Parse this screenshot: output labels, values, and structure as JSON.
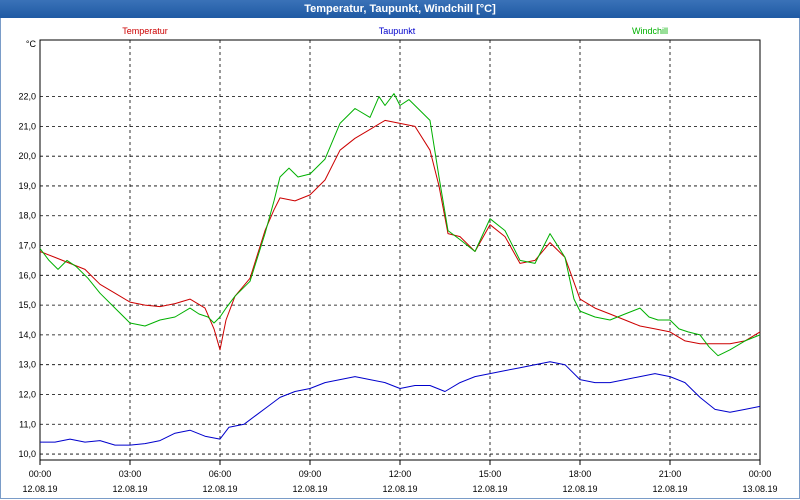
{
  "window": {
    "title": "Temperatur, Taupunkt, Windchill [°C]"
  },
  "chart_data": {
    "type": "line",
    "title": "Temperatur, Taupunkt, Windchill [°C]",
    "ylabel": "°C",
    "ylim": [
      9.8,
      23.9
    ],
    "xlim": [
      0,
      24
    ],
    "grid": true,
    "yticks": [
      10.0,
      11.0,
      12.0,
      13.0,
      14.0,
      15.0,
      16.0,
      17.0,
      18.0,
      19.0,
      20.0,
      21.0,
      22.0
    ],
    "ytick_labels": [
      "10,0",
      "11,0",
      "12,0",
      "13,0",
      "14,0",
      "15,0",
      "16,0",
      "17,0",
      "18,0",
      "19,0",
      "20,0",
      "21,0",
      "22,0"
    ],
    "xticks": [
      {
        "x": 0,
        "time": "00:00",
        "date": "12.08.19"
      },
      {
        "x": 3,
        "time": "03:00",
        "date": "12.08.19"
      },
      {
        "x": 6,
        "time": "06:00",
        "date": "12.08.19"
      },
      {
        "x": 9,
        "time": "09:00",
        "date": "12.08.19"
      },
      {
        "x": 12,
        "time": "12:00",
        "date": "12.08.19"
      },
      {
        "x": 15,
        "time": "15:00",
        "date": "12.08.19"
      },
      {
        "x": 18,
        "time": "18:00",
        "date": "12.08.19"
      },
      {
        "x": 21,
        "time": "21:00",
        "date": "12.08.19"
      },
      {
        "x": 24,
        "time": "00:00",
        "date": "13.08.19"
      }
    ],
    "series": [
      {
        "name": "Temperatur",
        "color": "#cc0000",
        "legend_pos": "left",
        "points": [
          [
            0,
            16.8
          ],
          [
            0.5,
            16.6
          ],
          [
            1,
            16.4
          ],
          [
            1.5,
            16.2
          ],
          [
            2,
            15.7
          ],
          [
            2.5,
            15.4
          ],
          [
            3,
            15.1
          ],
          [
            3.5,
            15.0
          ],
          [
            4,
            14.95
          ],
          [
            4.5,
            15.05
          ],
          [
            5,
            15.2
          ],
          [
            5.5,
            14.9
          ],
          [
            5.8,
            14.2
          ],
          [
            6,
            13.5
          ],
          [
            6.2,
            14.5
          ],
          [
            6.5,
            15.3
          ],
          [
            7,
            15.9
          ],
          [
            7.5,
            17.5
          ],
          [
            7.8,
            18.2
          ],
          [
            8,
            18.6
          ],
          [
            8.5,
            18.5
          ],
          [
            9,
            18.7
          ],
          [
            9.5,
            19.2
          ],
          [
            10,
            20.2
          ],
          [
            10.5,
            20.6
          ],
          [
            11,
            20.9
          ],
          [
            11.5,
            21.2
          ],
          [
            12,
            21.1
          ],
          [
            12.5,
            21.0
          ],
          [
            13,
            20.2
          ],
          [
            13.3,
            19.0
          ],
          [
            13.6,
            17.4
          ],
          [
            14,
            17.3
          ],
          [
            14.5,
            16.8
          ],
          [
            15,
            17.7
          ],
          [
            15.5,
            17.3
          ],
          [
            16,
            16.4
          ],
          [
            16.5,
            16.5
          ],
          [
            17,
            17.1
          ],
          [
            17.5,
            16.6
          ],
          [
            18,
            15.2
          ],
          [
            18.5,
            14.9
          ],
          [
            19,
            14.7
          ],
          [
            19.5,
            14.5
          ],
          [
            20,
            14.3
          ],
          [
            20.5,
            14.2
          ],
          [
            21,
            14.1
          ],
          [
            21.5,
            13.8
          ],
          [
            22,
            13.7
          ],
          [
            22.5,
            13.7
          ],
          [
            23,
            13.7
          ],
          [
            23.5,
            13.8
          ],
          [
            24,
            14.1
          ]
        ]
      },
      {
        "name": "Taupunkt",
        "color": "#0000cc",
        "legend_pos": "center",
        "points": [
          [
            0,
            10.4
          ],
          [
            0.5,
            10.4
          ],
          [
            1,
            10.5
          ],
          [
            1.5,
            10.4
          ],
          [
            2,
            10.45
          ],
          [
            2.5,
            10.3
          ],
          [
            3,
            10.3
          ],
          [
            3.5,
            10.35
          ],
          [
            4,
            10.45
          ],
          [
            4.5,
            10.7
          ],
          [
            5,
            10.8
          ],
          [
            5.5,
            10.6
          ],
          [
            6,
            10.5
          ],
          [
            6.3,
            10.9
          ],
          [
            6.8,
            11.0
          ],
          [
            7.2,
            11.3
          ],
          [
            7.6,
            11.6
          ],
          [
            8,
            11.9
          ],
          [
            8.5,
            12.1
          ],
          [
            9,
            12.2
          ],
          [
            9.5,
            12.4
          ],
          [
            10,
            12.5
          ],
          [
            10.5,
            12.6
          ],
          [
            11,
            12.5
          ],
          [
            11.5,
            12.4
          ],
          [
            12,
            12.2
          ],
          [
            12.5,
            12.3
          ],
          [
            13,
            12.3
          ],
          [
            13.5,
            12.1
          ],
          [
            14,
            12.4
          ],
          [
            14.5,
            12.6
          ],
          [
            15,
            12.7
          ],
          [
            15.5,
            12.8
          ],
          [
            16,
            12.9
          ],
          [
            16.5,
            13.0
          ],
          [
            17,
            13.1
          ],
          [
            17.5,
            13.0
          ],
          [
            18,
            12.5
          ],
          [
            18.5,
            12.4
          ],
          [
            19,
            12.4
          ],
          [
            19.5,
            12.5
          ],
          [
            20,
            12.6
          ],
          [
            20.5,
            12.7
          ],
          [
            21,
            12.6
          ],
          [
            21.5,
            12.4
          ],
          [
            22,
            11.9
          ],
          [
            22.5,
            11.5
          ],
          [
            23,
            11.4
          ],
          [
            23.5,
            11.5
          ],
          [
            24,
            11.6
          ]
        ]
      },
      {
        "name": "Windchill",
        "color": "#00b000",
        "legend_pos": "right",
        "points": [
          [
            0,
            16.9
          ],
          [
            0.3,
            16.5
          ],
          [
            0.6,
            16.2
          ],
          [
            0.9,
            16.5
          ],
          [
            1.2,
            16.3
          ],
          [
            1.6,
            15.9
          ],
          [
            2,
            15.4
          ],
          [
            2.5,
            14.9
          ],
          [
            3,
            14.4
          ],
          [
            3.5,
            14.3
          ],
          [
            4,
            14.5
          ],
          [
            4.5,
            14.6
          ],
          [
            5,
            14.9
          ],
          [
            5.3,
            14.7
          ],
          [
            5.6,
            14.6
          ],
          [
            5.8,
            14.4
          ],
          [
            6,
            14.6
          ],
          [
            6.2,
            14.9
          ],
          [
            6.5,
            15.3
          ],
          [
            7,
            15.8
          ],
          [
            7.5,
            17.4
          ],
          [
            7.8,
            18.5
          ],
          [
            8,
            19.3
          ],
          [
            8.3,
            19.6
          ],
          [
            8.6,
            19.3
          ],
          [
            9,
            19.4
          ],
          [
            9.5,
            19.9
          ],
          [
            10,
            21.1
          ],
          [
            10.5,
            21.6
          ],
          [
            11,
            21.3
          ],
          [
            11.3,
            22.0
          ],
          [
            11.5,
            21.7
          ],
          [
            11.8,
            22.1
          ],
          [
            12,
            21.7
          ],
          [
            12.3,
            21.9
          ],
          [
            12.6,
            21.6
          ],
          [
            13,
            21.2
          ],
          [
            13.3,
            19.3
          ],
          [
            13.6,
            17.5
          ],
          [
            14,
            17.2
          ],
          [
            14.5,
            16.8
          ],
          [
            15,
            17.9
          ],
          [
            15.5,
            17.5
          ],
          [
            16,
            16.5
          ],
          [
            16.5,
            16.4
          ],
          [
            17,
            17.4
          ],
          [
            17.5,
            16.6
          ],
          [
            17.8,
            15.2
          ],
          [
            18,
            14.8
          ],
          [
            18.5,
            14.6
          ],
          [
            19,
            14.5
          ],
          [
            19.5,
            14.7
          ],
          [
            20,
            14.9
          ],
          [
            20.3,
            14.6
          ],
          [
            20.6,
            14.5
          ],
          [
            21,
            14.5
          ],
          [
            21.3,
            14.2
          ],
          [
            21.6,
            14.1
          ],
          [
            22,
            14.0
          ],
          [
            22.3,
            13.6
          ],
          [
            22.6,
            13.3
          ],
          [
            23,
            13.5
          ],
          [
            23.5,
            13.8
          ],
          [
            24,
            14.0
          ]
        ]
      }
    ]
  }
}
